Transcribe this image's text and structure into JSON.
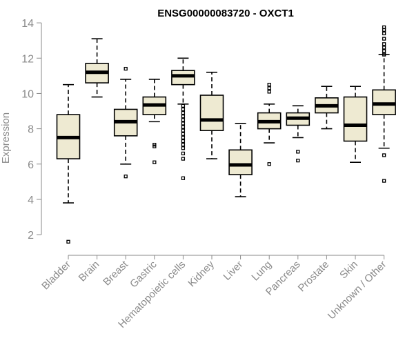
{
  "chart_data": {
    "type": "box",
    "title": "ENSG00000083720 - OXCT1",
    "xlabel": "",
    "ylabel": "Expression",
    "ylim": [
      1.3,
      14.2
    ],
    "yticks": [
      2,
      4,
      6,
      8,
      10,
      12,
      14
    ],
    "colors": {
      "box_fill": "#eeead2",
      "stroke": "#000000",
      "axis": "#8a8a8a"
    },
    "categories": [
      "Bladder",
      "Brain",
      "Breast",
      "Gastric",
      "Hematopoietic cells",
      "Kidney",
      "Liver",
      "Lung",
      "Pancreas",
      "Prostate",
      "Skin",
      "Unknown / Other"
    ],
    "boxes": [
      {
        "category": "Bladder",
        "whislo": 3.8,
        "q1": 6.3,
        "med": 7.5,
        "q3": 8.8,
        "whishi": 10.5,
        "fliers": [
          1.6
        ]
      },
      {
        "category": "Brain",
        "whislo": 9.8,
        "q1": 10.6,
        "med": 11.2,
        "q3": 11.7,
        "whishi": 13.1,
        "fliers": []
      },
      {
        "category": "Breast",
        "whislo": 6.0,
        "q1": 7.6,
        "med": 8.4,
        "q3": 9.1,
        "whishi": 10.8,
        "fliers": [
          5.3,
          11.4
        ]
      },
      {
        "category": "Gastric",
        "whislo": 8.4,
        "q1": 8.8,
        "med": 9.35,
        "q3": 9.8,
        "whishi": 10.8,
        "fliers": [
          7.0,
          7.1,
          6.1
        ]
      },
      {
        "category": "Hematopoietic cells",
        "whislo": 9.4,
        "q1": 10.5,
        "med": 11.0,
        "q3": 11.3,
        "whishi": 12.0,
        "fliers": [
          9.3,
          9.1,
          8.9,
          8.7,
          8.5,
          8.3,
          8.1,
          7.9,
          7.7,
          7.5,
          7.3,
          7.1,
          6.9,
          6.6,
          6.3,
          5.2
        ]
      },
      {
        "category": "Kidney",
        "whislo": 6.3,
        "q1": 7.9,
        "med": 8.5,
        "q3": 9.9,
        "whishi": 11.2,
        "fliers": []
      },
      {
        "category": "Liver",
        "whislo": 4.15,
        "q1": 5.4,
        "med": 5.95,
        "q3": 6.8,
        "whishi": 8.3,
        "fliers": []
      },
      {
        "category": "Lung",
        "whislo": 7.2,
        "q1": 8.0,
        "med": 8.4,
        "q3": 8.9,
        "whishi": 9.4,
        "fliers": [
          10.1,
          10.3,
          10.5,
          6.0
        ]
      },
      {
        "category": "Pancreas",
        "whislo": 7.5,
        "q1": 8.2,
        "med": 8.6,
        "q3": 8.9,
        "whishi": 9.3,
        "fliers": [
          6.7,
          6.2
        ]
      },
      {
        "category": "Prostate",
        "whislo": 8.0,
        "q1": 8.9,
        "med": 9.3,
        "q3": 9.75,
        "whishi": 10.4,
        "fliers": []
      },
      {
        "category": "Skin",
        "whislo": 6.1,
        "q1": 7.3,
        "med": 8.2,
        "q3": 9.8,
        "whishi": 10.4,
        "fliers": []
      },
      {
        "category": "Unknown / Other",
        "whislo": 6.9,
        "q1": 8.8,
        "med": 9.4,
        "q3": 10.2,
        "whishi": 12.2,
        "fliers": [
          12.6,
          12.8,
          13.1,
          13.4,
          13.6,
          13.75,
          12.2,
          12.4,
          6.5,
          5.05
        ]
      }
    ]
  }
}
